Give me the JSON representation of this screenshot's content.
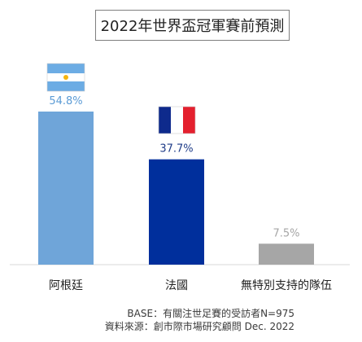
{
  "title": "2022年世界盃冠軍賽前預測",
  "footnotes": [
    "BASE：有關注世足賽的受訪者N=975",
    "資料來源：創市際市場研究顧問 Dec. 2022"
  ],
  "chart_data": {
    "type": "bar",
    "title": "2022年世界盃冠軍賽前預測",
    "categories": [
      "阿根廷",
      "法國",
      "無特別支持的隊伍"
    ],
    "values": [
      54.8,
      37.7,
      7.5
    ],
    "data_labels": [
      "54.8%",
      "37.7%",
      "7.5%"
    ],
    "unit": "%",
    "ylim": [
      0,
      60
    ],
    "grid": false,
    "legend": "none",
    "bar_colors": [
      "#6FA5D9",
      "#002F9C",
      "#A6A6A6"
    ],
    "label_colors": [
      "#5B9BD5",
      "#1F3C88",
      "#A6A6A6"
    ],
    "flags": [
      "argentina-flag-icon",
      "france-flag-icon",
      null
    ]
  }
}
